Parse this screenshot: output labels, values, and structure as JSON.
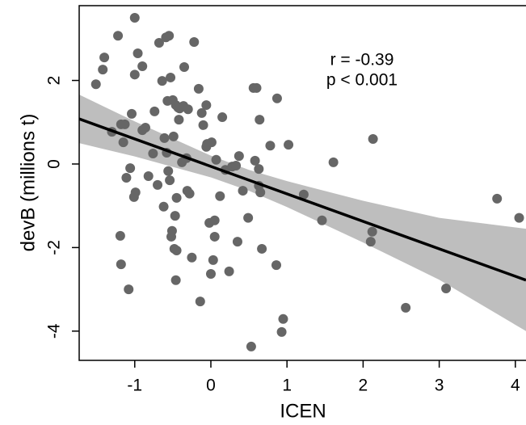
{
  "chart_data": {
    "type": "scatter",
    "xlabel": "ICEN",
    "ylabel": "devB (millions t)",
    "annotations": [
      "r = -0.39",
      "p < 0.001"
    ],
    "xlim": [
      -1.73,
      4.14
    ],
    "ylim": [
      -4.7,
      3.79
    ],
    "xticks": [
      -1,
      0,
      1,
      2,
      3,
      4
    ],
    "yticks": [
      -4,
      -2,
      0,
      2
    ],
    "color": "#666666",
    "x": [
      -1.51,
      -1.42,
      -1.4,
      -1.3,
      -1.22,
      -1.19,
      -1.18,
      -1.18,
      -1.15,
      -1.13,
      -1.11,
      -1.08,
      -1.06,
      -1.04,
      -1.01,
      -1.0,
      -1.0,
      -0.99,
      -0.96,
      -0.9,
      -0.9,
      -0.86,
      -0.82,
      -0.76,
      -0.74,
      -0.7,
      -0.68,
      -0.64,
      -0.62,
      -0.61,
      -0.59,
      -0.58,
      -0.57,
      -0.56,
      -0.55,
      -0.54,
      -0.53,
      -0.52,
      -0.51,
      -0.5,
      -0.49,
      -0.48,
      -0.47,
      -0.46,
      -0.46,
      -0.45,
      -0.45,
      -0.43,
      -0.42,
      -0.41,
      -0.38,
      -0.36,
      -0.35,
      -0.32,
      -0.31,
      -0.3,
      -0.28,
      -0.25,
      -0.22,
      -0.16,
      -0.14,
      -0.12,
      -0.1,
      -0.06,
      -0.06,
      -0.05,
      -0.02,
      0.0,
      0.01,
      0.03,
      0.05,
      0.05,
      0.07,
      0.12,
      0.15,
      0.19,
      0.24,
      0.28,
      0.33,
      0.35,
      0.37,
      0.42,
      0.49,
      0.53,
      0.56,
      0.58,
      0.6,
      0.63,
      0.63,
      0.64,
      0.65,
      0.67,
      0.78,
      0.86,
      0.87,
      0.93,
      0.95,
      1.02,
      1.22,
      1.46,
      1.61,
      2.1,
      2.12,
      2.13,
      2.56,
      3.09,
      3.76,
      4.05
    ],
    "values": [
      1.91,
      2.26,
      2.55,
      0.77,
      3.07,
      -1.72,
      -2.4,
      0.95,
      0.52,
      0.95,
      -0.33,
      -3.0,
      -0.1,
      1.2,
      -0.79,
      3.5,
      2.14,
      -0.68,
      2.65,
      2.34,
      0.81,
      0.87,
      -0.29,
      0.25,
      1.26,
      -0.5,
      2.9,
      1.99,
      -1.02,
      0.62,
      3.03,
      0.27,
      1.51,
      -0.17,
      3.07,
      -0.39,
      2.07,
      -1.74,
      -1.6,
      1.53,
      0.66,
      -2.03,
      -1.24,
      -2.78,
      1.41,
      -0.81,
      -2.07,
      1.35,
      1.06,
      1.33,
      0.04,
      1.39,
      2.32,
      0.14,
      -0.64,
      1.31,
      -0.71,
      -2.24,
      2.92,
      1.8,
      -3.29,
      1.22,
      0.93,
      1.41,
      0.41,
      0.48,
      -1.41,
      -2.63,
      0.52,
      -2.3,
      -1.35,
      -1.74,
      0.1,
      -0.77,
      1.12,
      -0.14,
      -2.57,
      -0.06,
      -0.04,
      -1.86,
      0.19,
      -0.64,
      -1.29,
      -4.37,
      1.82,
      0.08,
      1.82,
      -0.12,
      -0.52,
      1.06,
      -0.68,
      -2.03,
      0.44,
      -2.42,
      1.57,
      -4.02,
      -3.71,
      0.46,
      -0.73,
      -1.35,
      0.04,
      -1.86,
      -1.62,
      0.6,
      -3.44,
      -2.98,
      -0.83,
      -1.29
    ],
    "fit": {
      "color": "#000000",
      "x": [
        -1.73,
        4.14
      ],
      "y": [
        1.08,
        -2.78
      ]
    },
    "band": {
      "color": "#bebebe",
      "x": [
        -1.73,
        -1,
        0,
        0.5,
        1,
        2,
        3,
        4.14
      ],
      "upper": [
        1.66,
        1.02,
        0.2,
        -0.14,
        -0.41,
        -0.88,
        -1.29,
        -1.55
      ],
      "lower": [
        0.5,
        0.18,
        -0.32,
        -0.64,
        -1.03,
        -1.88,
        -2.77,
        -4.0
      ]
    }
  }
}
